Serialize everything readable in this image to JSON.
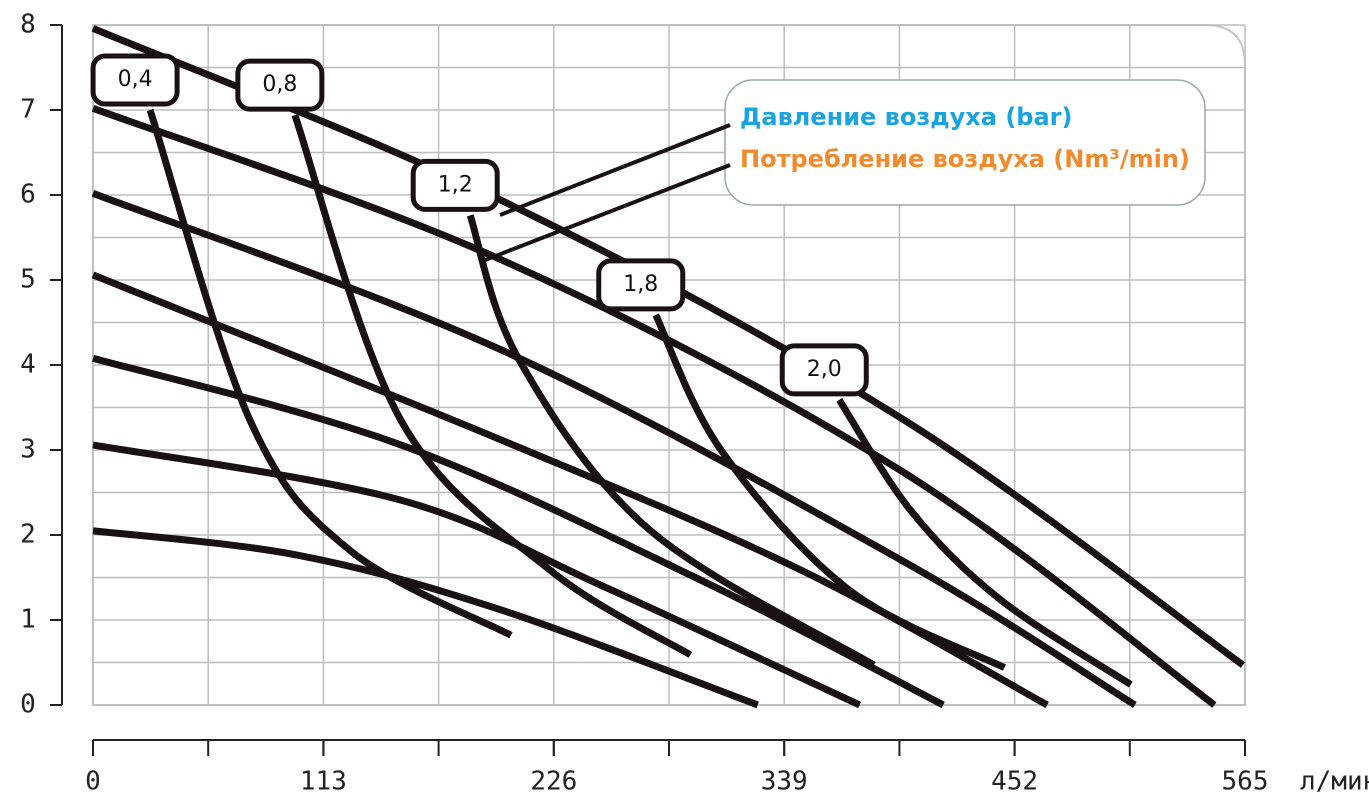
{
  "chart_data": {
    "type": "line",
    "xlim": [
      0,
      565
    ],
    "ylim": [
      0,
      8
    ],
    "xticks": [
      0,
      113,
      226,
      339,
      452,
      565
    ],
    "yticks": [
      0,
      1,
      2,
      3,
      4,
      5,
      6,
      7,
      8
    ],
    "xgrid": [
      0,
      56.5,
      113,
      169.5,
      226,
      282.5,
      339,
      395.5,
      452,
      508.5,
      565
    ],
    "ygrid": [
      0,
      0.5,
      1,
      1.5,
      2,
      2.5,
      3,
      3.5,
      4,
      4.5,
      5,
      5.5,
      6,
      6.5,
      7,
      7.5,
      8
    ],
    "x_unit": "л/мин",
    "grid": true,
    "line_color": "#1a1212",
    "legend": {
      "pressure": "Давление воздуха (bar)",
      "pressure_color": "#1aa3e2",
      "consumption": "Потребление воздуха (Nm³/min)",
      "consumption_color": "#f08a2c"
    },
    "pressure_lines": [
      {
        "x": [
          0,
          200,
          398,
          564
        ],
        "values": [
          7.96,
          5.94,
          3.35,
          0.47
        ]
      },
      {
        "x": [
          0,
          200,
          396,
          550
        ],
        "values": [
          7.02,
          5.24,
          2.76,
          0
        ]
      },
      {
        "x": [
          0,
          200,
          396,
          511
        ],
        "values": [
          6.02,
          4.18,
          1.71,
          0
        ]
      },
      {
        "x": [
          0,
          200,
          347,
          468
        ],
        "values": [
          5.06,
          3.12,
          1.59,
          0
        ]
      },
      {
        "x": [
          0,
          151,
          298,
          417
        ],
        "values": [
          4.08,
          3.06,
          1.47,
          0
        ]
      },
      {
        "x": [
          0,
          151,
          249,
          376
        ],
        "values": [
          3.06,
          2.41,
          1.41,
          0
        ]
      },
      {
        "x": [
          0,
          101,
          200,
          326
        ],
        "values": [
          2.05,
          1.76,
          1.12,
          0
        ]
      }
    ],
    "consumption_curves": [
      {
        "name": "0,4",
        "x": [
          28,
          77,
          126,
          205
        ],
        "values": [
          7.0,
          3.35,
          1.82,
          0.82
        ]
      },
      {
        "name": "0,8",
        "x": [
          99,
          151,
          224,
          293
        ],
        "values": [
          6.94,
          3.35,
          1.59,
          0.59
        ]
      },
      {
        "name": "1,2",
        "x": [
          185,
          209,
          273,
          383
        ],
        "values": [
          5.76,
          4.06,
          2.06,
          0.47
        ]
      },
      {
        "name": "1,8",
        "x": [
          276,
          308,
          371,
          447
        ],
        "values": [
          4.59,
          3.0,
          1.35,
          0.44
        ]
      },
      {
        "name": "2,0",
        "x": [
          366,
          401,
          445,
          509
        ],
        "values": [
          3.59,
          2.29,
          1.24,
          0.24
        ]
      }
    ]
  }
}
